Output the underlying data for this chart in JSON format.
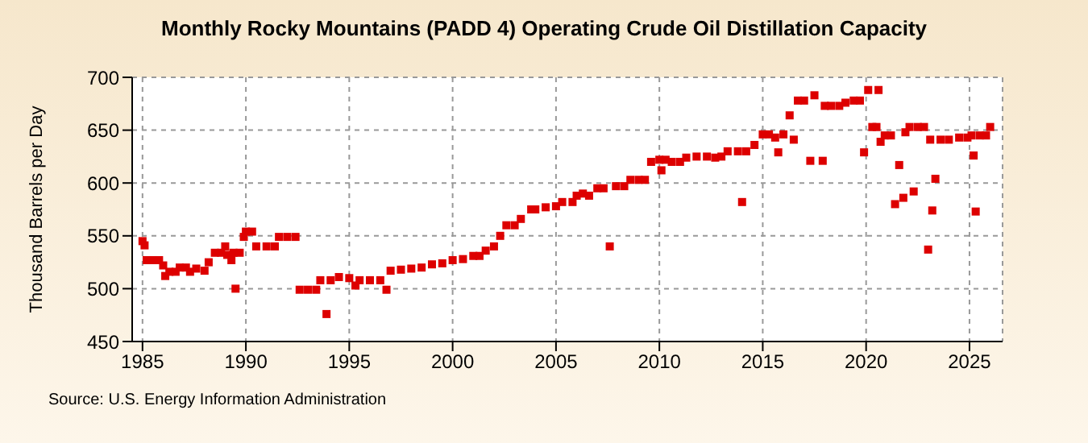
{
  "chart_data": {
    "type": "scatter",
    "title": "Monthly Rocky Mountains (PADD 4) Operating Crude Oil Distillation Capacity",
    "ylabel": "Thousand Barrels per Day",
    "annotations": [
      "Source: U.S. Energy Information Administration"
    ],
    "xlim": [
      1984.5,
      2026.6
    ],
    "xticks": [
      1985,
      1990,
      1995,
      2000,
      2005,
      2010,
      2015,
      2020,
      2025
    ],
    "ylim": [
      450,
      700
    ],
    "yticks": [
      450,
      500,
      550,
      600,
      650,
      700
    ],
    "grid": true,
    "marker": "square",
    "legend": false,
    "series": [
      {
        "color": "#dd0000",
        "x": [
          1985.0,
          1985.1,
          1985.2,
          1985.5,
          1985.8,
          1986.0,
          1986.1,
          1986.3,
          1986.6,
          1986.8,
          1987.1,
          1987.3,
          1987.6,
          1988.0,
          1988.2,
          1988.5,
          1988.8,
          1989.0,
          1989.1,
          1989.3,
          1989.4,
          1989.5,
          1989.7,
          1989.9,
          1990.0,
          1990.3,
          1990.5,
          1991.0,
          1991.4,
          1991.6,
          1992.0,
          1992.4,
          1992.6,
          1993.0,
          1993.4,
          1993.6,
          1993.9,
          1994.1,
          1994.5,
          1995.0,
          1995.3,
          1995.5,
          1996.0,
          1996.5,
          1996.8,
          1997.0,
          1997.5,
          1998.0,
          1998.5,
          1999.0,
          1999.5,
          2000.0,
          2000.5,
          2001.0,
          2001.3,
          2001.6,
          2002.0,
          2002.3,
          2002.6,
          2003.0,
          2003.3,
          2003.8,
          2004.0,
          2004.5,
          2005.0,
          2005.3,
          2005.8,
          2006.0,
          2006.3,
          2006.6,
          2007.0,
          2007.3,
          2007.6,
          2007.9,
          2008.3,
          2008.6,
          2009.0,
          2009.3,
          2009.6,
          2010.0,
          2010.1,
          2010.3,
          2010.6,
          2011.0,
          2011.3,
          2011.8,
          2012.3,
          2012.7,
          2013.0,
          2013.3,
          2013.8,
          2014.0,
          2014.2,
          2014.6,
          2015.0,
          2015.3,
          2015.6,
          2015.75,
          2016.0,
          2016.3,
          2016.5,
          2016.7,
          2017.0,
          2017.3,
          2017.5,
          2017.9,
          2018.0,
          2018.3,
          2018.7,
          2019.0,
          2019.4,
          2019.7,
          2019.9,
          2020.1,
          2020.3,
          2020.5,
          2020.6,
          2020.7,
          2020.9,
          2021.2,
          2021.4,
          2021.6,
          2021.8,
          2021.9,
          2022.1,
          2022.3,
          2022.5,
          2022.8,
          2023.0,
          2023.1,
          2023.2,
          2023.35,
          2023.6,
          2024.0,
          2024.5,
          2024.9,
          2025.1,
          2025.2,
          2025.3,
          2025.5,
          2025.8,
          2026.0
        ],
        "values": [
          545,
          541,
          527,
          527,
          527,
          522,
          512,
          516,
          516,
          520,
          520,
          516,
          519,
          517,
          525,
          534,
          534,
          540,
          532,
          527,
          534,
          500,
          534,
          549,
          554,
          554,
          540,
          540,
          540,
          549,
          549,
          549,
          499,
          499,
          499,
          508,
          476,
          508,
          511,
          510,
          503,
          508,
          508,
          508,
          499,
          517,
          518,
          519,
          520,
          523,
          524,
          527,
          528,
          531,
          531,
          536,
          540,
          550,
          560,
          560,
          566,
          575,
          575,
          577,
          578,
          582,
          582,
          588,
          590,
          588,
          595,
          595,
          540,
          597,
          597,
          603,
          603,
          603,
          620,
          622,
          612,
          622,
          620,
          620,
          624,
          625,
          625,
          624,
          625,
          630,
          630,
          582,
          630,
          636,
          646,
          646,
          643,
          629,
          646,
          664,
          641,
          678,
          678,
          621,
          683,
          621,
          673,
          673,
          673,
          676,
          678,
          678,
          629,
          688,
          653,
          653,
          688,
          639,
          645,
          645,
          580,
          617,
          586,
          648,
          653,
          592,
          653,
          653,
          537,
          641,
          574,
          604,
          641,
          641,
          643,
          643,
          645,
          626,
          573,
          645,
          645,
          653
        ]
      }
    ]
  }
}
